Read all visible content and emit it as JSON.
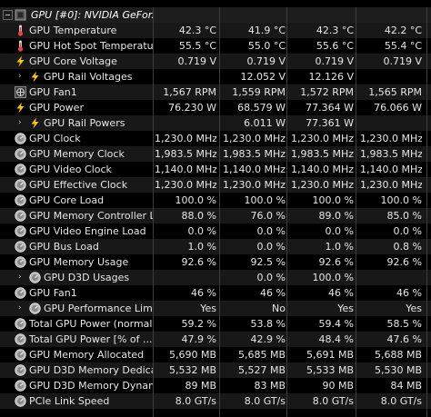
{
  "header": {
    "title": "GPU [#0]: NVIDIA GeFor..."
  },
  "rows": [
    {
      "label": "GPU Temperature",
      "icon": "thermometer-icon",
      "sub": false,
      "values": [
        "42.3 °C",
        "41.9 °C",
        "42.3 °C",
        "42.2 °C"
      ]
    },
    {
      "label": "GPU Hot Spot Temperature",
      "icon": "thermometer-icon",
      "sub": false,
      "values": [
        "55.5 °C",
        "55.0 °C",
        "55.6 °C",
        "55.4 °C"
      ]
    },
    {
      "label": "GPU Core Voltage",
      "icon": "lightning-icon",
      "sub": false,
      "values": [
        "0.719 V",
        "0.719 V",
        "0.719 V",
        "0.719 V"
      ]
    },
    {
      "label": "GPU Rail Voltages",
      "icon": "lightning-icon",
      "sub": true,
      "expand": true,
      "values": [
        "",
        "12.052 V",
        "12.126 V",
        ""
      ]
    },
    {
      "label": "GPU Fan1",
      "icon": "fan-icon",
      "sub": false,
      "values": [
        "1,567 RPM",
        "1,559 RPM",
        "1,572 RPM",
        "1,565 RPM"
      ]
    },
    {
      "label": "GPU Power",
      "icon": "lightning-icon",
      "sub": false,
      "values": [
        "76.230 W",
        "68.579 W",
        "77.364 W",
        "76.066 W"
      ]
    },
    {
      "label": "GPU Rail Powers",
      "icon": "lightning-icon",
      "sub": true,
      "expand": true,
      "values": [
        "",
        "6.011 W",
        "77.361 W",
        ""
      ]
    },
    {
      "label": "GPU Clock",
      "icon": "clock-icon",
      "sub": false,
      "values": [
        "1,230.0 MHz",
        "1,230.0 MHz",
        "1,230.0 MHz",
        "1,230.0 MHz"
      ]
    },
    {
      "label": "GPU Memory Clock",
      "icon": "clock-icon",
      "sub": false,
      "values": [
        "1,983.5 MHz",
        "1,983.5 MHz",
        "1,983.5 MHz",
        "1,983.5 MHz"
      ]
    },
    {
      "label": "GPU Video Clock",
      "icon": "clock-icon",
      "sub": false,
      "values": [
        "1,140.0 MHz",
        "1,140.0 MHz",
        "1,140.0 MHz",
        "1,140.0 MHz"
      ]
    },
    {
      "label": "GPU Effective Clock",
      "icon": "clock-icon",
      "sub": false,
      "values": [
        "1,230.0 MHz",
        "1,230.0 MHz",
        "1,230.0 MHz",
        "1,230.0 MHz"
      ]
    },
    {
      "label": "GPU Core Load",
      "icon": "gauge-icon",
      "sub": false,
      "values": [
        "100.0 %",
        "100.0 %",
        "100.0 %",
        "100.0 %"
      ]
    },
    {
      "label": "GPU Memory Controller L...",
      "icon": "gauge-icon",
      "sub": false,
      "values": [
        "88.0 %",
        "76.0 %",
        "89.0 %",
        "85.0 %"
      ]
    },
    {
      "label": "GPU Video Engine Load",
      "icon": "gauge-icon",
      "sub": false,
      "values": [
        "0.0 %",
        "0.0 %",
        "0.0 %",
        "0.0 %"
      ]
    },
    {
      "label": "GPU Bus Load",
      "icon": "gauge-icon",
      "sub": false,
      "values": [
        "1.0 %",
        "0.0 %",
        "1.0 %",
        "0.8 %"
      ]
    },
    {
      "label": "GPU Memory Usage",
      "icon": "gauge-icon",
      "sub": false,
      "values": [
        "92.6 %",
        "92.5 %",
        "92.6 %",
        "92.6 %"
      ]
    },
    {
      "label": "GPU D3D Usages",
      "icon": "gauge-icon",
      "sub": true,
      "expand": true,
      "values": [
        "",
        "0.0 %",
        "100.0 %",
        ""
      ]
    },
    {
      "label": "GPU Fan1",
      "icon": "gauge-icon",
      "sub": false,
      "values": [
        "46 %",
        "46 %",
        "46 %",
        "46 %"
      ]
    },
    {
      "label": "GPU Performance Limits",
      "icon": "gauge-icon",
      "sub": true,
      "expand": true,
      "values": [
        "Yes",
        "No",
        "Yes",
        "Yes"
      ]
    },
    {
      "label": "Total GPU Power (normal...",
      "icon": "gauge-icon",
      "sub": false,
      "values": [
        "59.2 %",
        "53.8 %",
        "59.4 %",
        "58.5 %"
      ]
    },
    {
      "label": "Total GPU Power [% of ...",
      "icon": "gauge-icon",
      "sub": false,
      "values": [
        "47.9 %",
        "42.9 %",
        "48.4 %",
        "47.6 %"
      ]
    },
    {
      "label": "GPU Memory Allocated",
      "icon": "gauge-icon",
      "sub": false,
      "values": [
        "5,690 MB",
        "5,685 MB",
        "5,691 MB",
        "5,688 MB"
      ]
    },
    {
      "label": "GPU D3D Memory Dedica...",
      "icon": "gauge-icon",
      "sub": false,
      "values": [
        "5,532 MB",
        "5,527 MB",
        "5,533 MB",
        "5,530 MB"
      ]
    },
    {
      "label": "GPU D3D Memory Dynamic",
      "icon": "gauge-icon",
      "sub": false,
      "values": [
        "89 MB",
        "83 MB",
        "90 MB",
        "84 MB"
      ]
    },
    {
      "label": "PCIe Link Speed",
      "icon": "gauge-icon",
      "sub": false,
      "values": [
        "8.0 GT/s",
        "8.0 GT/s",
        "8.0 GT/s",
        "8.0 GT/s"
      ]
    }
  ],
  "colors": {
    "background": "#000000",
    "row_alt": "#181818",
    "text": "#e6e6e6",
    "thermometer": "#e0463a",
    "lightning": "#f5c518",
    "gauge": "#c8c8c8"
  }
}
